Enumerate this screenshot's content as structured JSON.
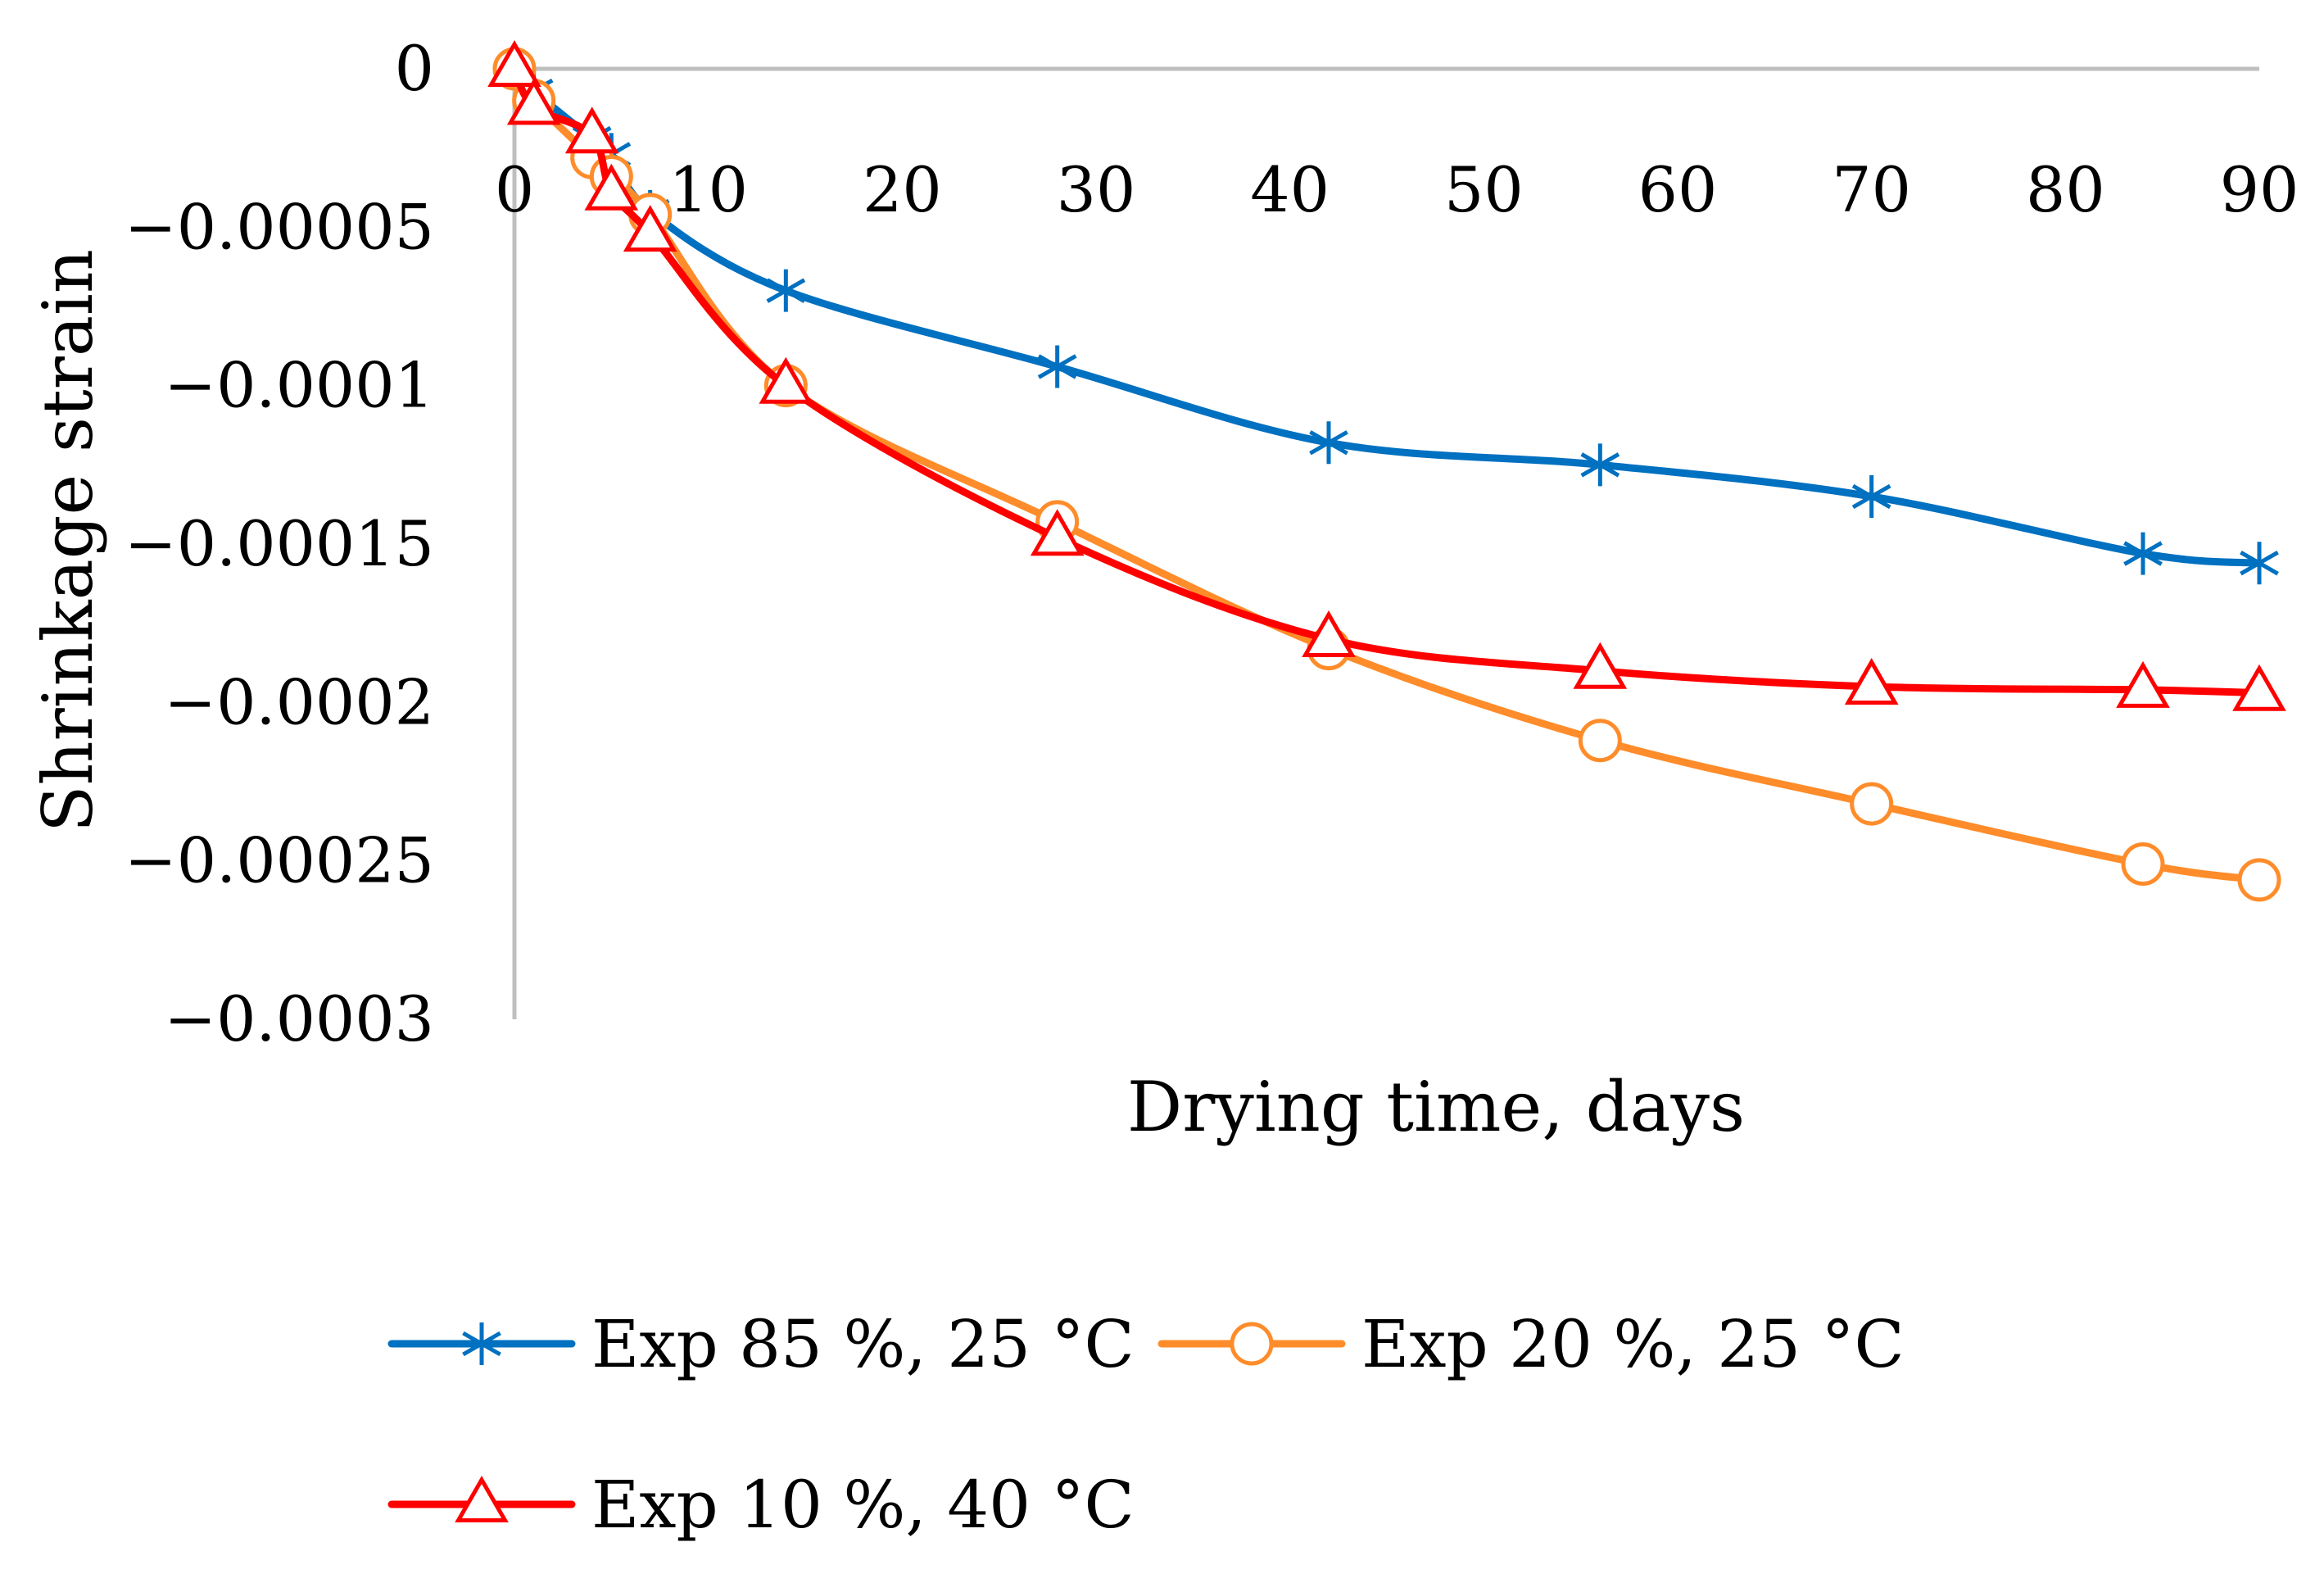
{
  "chart_data": {
    "type": "line",
    "title": "",
    "xlabel": "Drying time, days",
    "ylabel": "Shrinkage strain",
    "xlim": [
      0,
      90
    ],
    "ylim": [
      -0.0003,
      0
    ],
    "xticks": [
      0,
      10,
      20,
      30,
      40,
      50,
      60,
      70,
      80,
      90
    ],
    "xtick_labels": [
      "0",
      "10",
      "20",
      "30",
      "40",
      "50",
      "60",
      "70",
      "80",
      "90"
    ],
    "yticks": [
      0,
      -5e-05,
      -0.0001,
      -0.00015,
      -0.0002,
      -0.00025,
      -0.0003
    ],
    "ytick_labels": [
      "0",
      "−0.00005",
      "−0.0001",
      "−0.00015",
      "−0.0002",
      "−0.00025",
      "−0.0003"
    ],
    "grid": false,
    "legend_position": "bottom",
    "series": [
      {
        "name": "Exp 85 %, 25 °C",
        "color": "#0070c0",
        "marker": "star",
        "x": [
          0,
          1,
          4,
          5,
          7,
          14,
          28,
          42,
          56,
          70,
          84,
          90
        ],
        "y": [
          0,
          -7e-06,
          -2.2e-05,
          -2.7e-05,
          -4.5e-05,
          -7e-05,
          -9.4e-05,
          -0.000118,
          -0.000125,
          -0.000135,
          -0.000153,
          -0.000156
        ]
      },
      {
        "name": "Exp 20 %, 25 °C",
        "color": "#ff8c2a",
        "marker": "circle",
        "x": [
          0,
          1,
          4,
          5,
          7,
          14,
          28,
          42,
          56,
          70,
          84,
          90
        ],
        "y": [
          0,
          -1e-05,
          -2.8e-05,
          -3.4e-05,
          -4.6e-05,
          -0.0001,
          -0.000143,
          -0.000183,
          -0.000212,
          -0.000232,
          -0.000251,
          -0.000256
        ]
      },
      {
        "name": "Exp 10 %, 40 °C",
        "color": "#ff0000",
        "marker": "triangle",
        "x": [
          0,
          1,
          4,
          5,
          7,
          14,
          28,
          42,
          56,
          70,
          84,
          90
        ],
        "y": [
          0,
          -1.2e-05,
          -2.1e-05,
          -3.9e-05,
          -5.2e-05,
          -0.0001,
          -0.000148,
          -0.00018,
          -0.00019,
          -0.000195,
          -0.000196,
          -0.000197
        ]
      }
    ]
  }
}
